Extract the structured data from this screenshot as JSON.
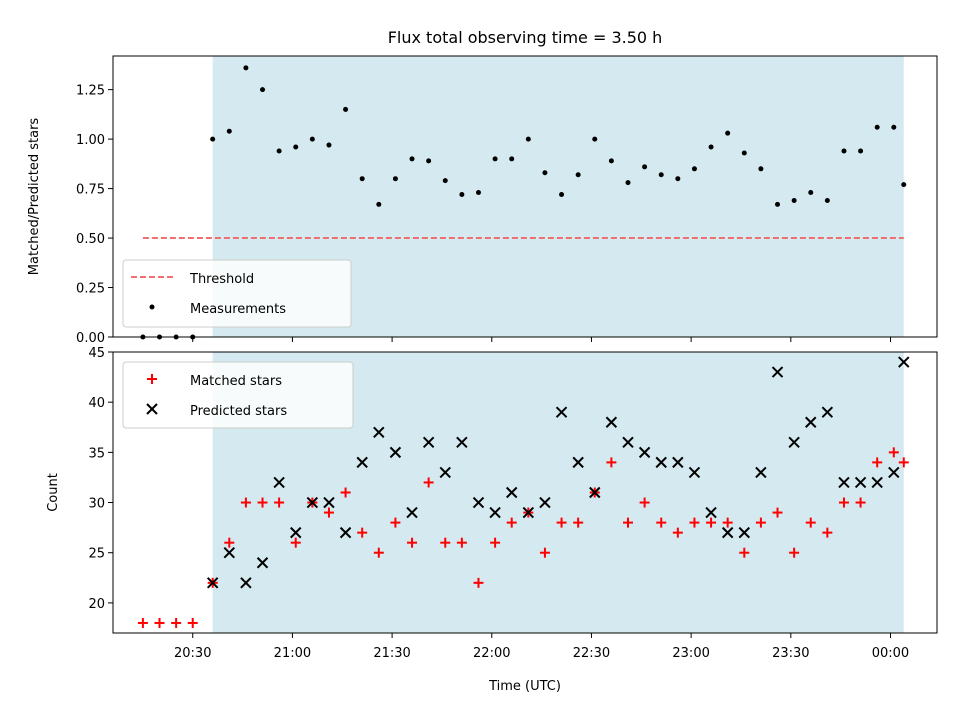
{
  "chart_data": [
    {
      "type": "scatter",
      "title": "Flux total observing time = 3.50 h",
      "xlabel": "",
      "ylabel": "Matched/Predicted stars",
      "ylim": [
        0,
        1.42
      ],
      "yticks": [
        "0.00",
        "0.25",
        "0.50",
        "0.75",
        "1.00",
        "1.25"
      ],
      "ytick_values": [
        0,
        0.25,
        0.5,
        0.75,
        1.0,
        1.25
      ],
      "observing_window": [
        "20:36",
        "00:04"
      ],
      "shade_color": "#d4eaf0",
      "threshold": {
        "name": "Threshold",
        "value": 0.5,
        "x_range": [
          "20:15",
          "00:04"
        ],
        "color": "#f07070"
      },
      "legend": {
        "location": "lower-left",
        "entries": [
          "Threshold",
          "Measurements"
        ]
      },
      "series": [
        {
          "name": "Measurements",
          "color": "#000000",
          "x": [
            "20:15",
            "20:20",
            "20:25",
            "20:30",
            "20:36",
            "20:41",
            "20:46",
            "20:51",
            "20:56",
            "21:01",
            "21:06",
            "21:11",
            "21:16",
            "21:21",
            "21:26",
            "21:31",
            "21:36",
            "21:41",
            "21:46",
            "21:51",
            "21:56",
            "22:01",
            "22:06",
            "22:11",
            "22:16",
            "22:21",
            "22:26",
            "22:31",
            "22:36",
            "22:41",
            "22:46",
            "22:51",
            "22:56",
            "23:01",
            "23:06",
            "23:11",
            "23:16",
            "23:21",
            "23:26",
            "23:31",
            "23:36",
            "23:41",
            "23:46",
            "23:51",
            "23:56",
            "00:01",
            "00:04"
          ],
          "values": [
            0,
            0,
            0,
            0,
            1.0,
            1.04,
            1.36,
            1.25,
            0.94,
            0.96,
            1.0,
            0.97,
            1.15,
            0.8,
            0.67,
            0.8,
            0.9,
            0.89,
            0.79,
            0.72,
            0.73,
            0.9,
            0.9,
            1.0,
            0.83,
            0.72,
            0.82,
            1.0,
            0.89,
            0.78,
            0.86,
            0.82,
            0.8,
            0.85,
            0.96,
            1.03,
            0.93,
            0.85,
            0.67,
            0.69,
            0.73,
            0.69,
            0.94,
            0.94,
            1.06,
            1.06,
            0.77
          ]
        }
      ]
    },
    {
      "type": "scatter",
      "title": "",
      "xlabel": "Time (UTC)",
      "ylabel": "Count",
      "ylim": [
        17,
        45
      ],
      "yticks": [
        "20",
        "25",
        "30",
        "35",
        "40",
        "45"
      ],
      "ytick_values": [
        20,
        25,
        30,
        35,
        40,
        45
      ],
      "xtick_labels": [
        "20:30",
        "21:00",
        "21:30",
        "22:00",
        "22:30",
        "23:00",
        "23:30",
        "00:00"
      ],
      "xtick_times": [
        "20:30",
        "21:00",
        "21:30",
        "22:00",
        "22:30",
        "23:00",
        "23:30",
        "00:00"
      ],
      "xlim": [
        "20:06",
        "00:14"
      ],
      "observing_window": [
        "20:36",
        "00:04"
      ],
      "shade_color": "#d4eaf0",
      "legend": {
        "location": "top-left",
        "entries": [
          "Matched stars",
          "Predicted stars"
        ]
      },
      "x": [
        "20:15",
        "20:20",
        "20:25",
        "20:30",
        "20:36",
        "20:41",
        "20:46",
        "20:51",
        "20:56",
        "21:01",
        "21:06",
        "21:11",
        "21:16",
        "21:21",
        "21:26",
        "21:31",
        "21:36",
        "21:41",
        "21:46",
        "21:51",
        "21:56",
        "22:01",
        "22:06",
        "22:11",
        "22:16",
        "22:21",
        "22:26",
        "22:31",
        "22:36",
        "22:41",
        "22:46",
        "22:51",
        "22:56",
        "23:01",
        "23:06",
        "23:11",
        "23:16",
        "23:21",
        "23:26",
        "23:31",
        "23:36",
        "23:41",
        "23:46",
        "23:51",
        "23:56",
        "00:01",
        "00:04"
      ],
      "series": [
        {
          "name": "Matched stars",
          "color": "#ff0000",
          "marker": "plus",
          "values": [
            18,
            18,
            18,
            18,
            22,
            26,
            30,
            30,
            30,
            26,
            30,
            29,
            31,
            27,
            25,
            28,
            26,
            32,
            26,
            26,
            22,
            26,
            28,
            29,
            25,
            28,
            28,
            31,
            34,
            28,
            30,
            28,
            27,
            28,
            28,
            28,
            25,
            28,
            29,
            25,
            28,
            27,
            30,
            30,
            34,
            35,
            34
          ]
        },
        {
          "name": "Predicted stars",
          "color": "#000000",
          "marker": "x",
          "values": [
            null,
            null,
            null,
            null,
            22,
            25,
            22,
            24,
            32,
            27,
            30,
            30,
            27,
            34,
            37,
            35,
            29,
            36,
            33,
            36,
            30,
            29,
            31,
            29,
            30,
            39,
            34,
            31,
            38,
            36,
            35,
            34,
            34,
            33,
            29,
            27,
            27,
            33,
            43,
            36,
            38,
            39,
            32,
            32,
            32,
            33,
            44
          ]
        }
      ]
    }
  ]
}
